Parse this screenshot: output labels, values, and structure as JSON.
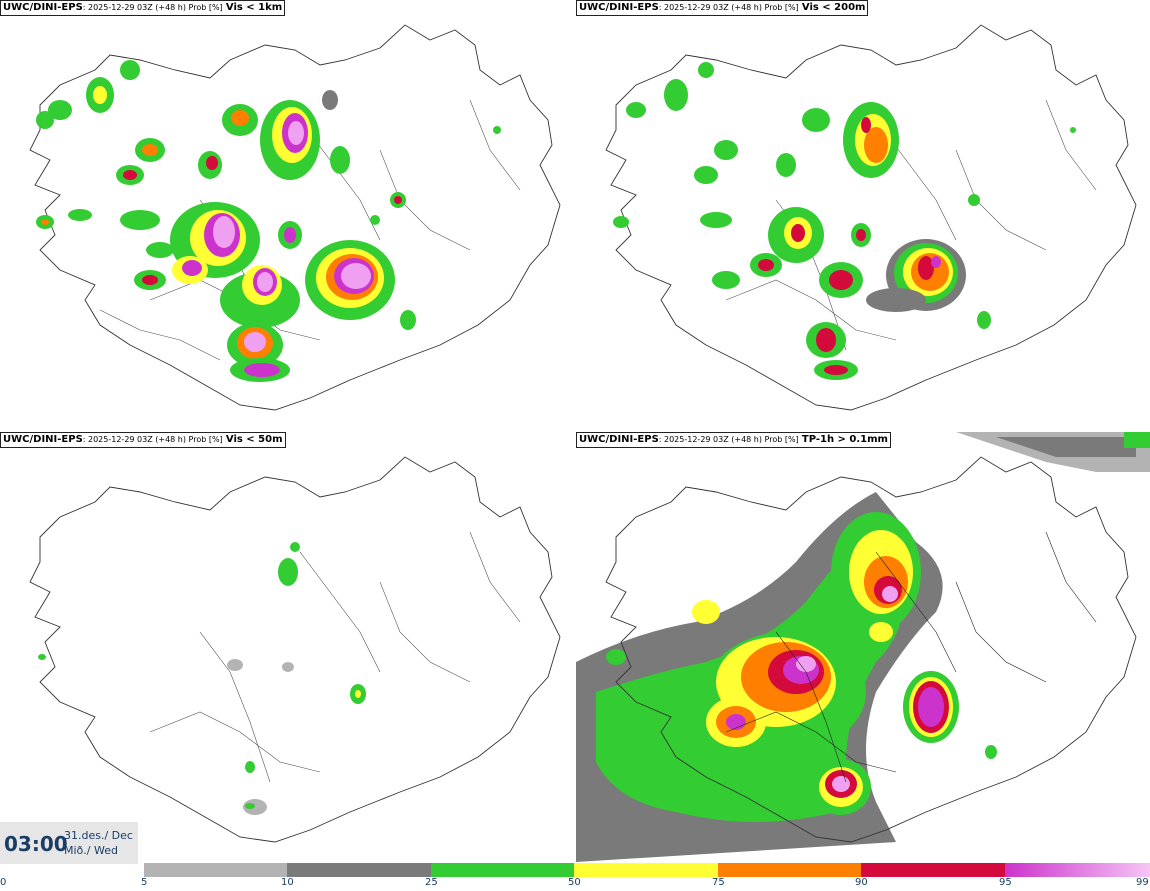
{
  "panels": [
    {
      "source": "UWC/DINI-EPS",
      "meta": ": 2025-12-29 03Z (+48 h) Prob [%]",
      "variable": "Vis < 1km"
    },
    {
      "source": "UWC/DINI-EPS",
      "meta": ": 2025-12-29 03Z (+48 h) Prob [%]",
      "variable": "Vis < 200m"
    },
    {
      "source": "UWC/DINI-EPS",
      "meta": ": 2025-12-29 03Z (+48 h) Prob [%]",
      "variable": "Vis < 50m"
    },
    {
      "source": "UWC/DINI-EPS",
      "meta": ": 2025-12-29 03Z (+48 h) Prob [%]",
      "variable": "TP-1h > 0.1mm"
    }
  ],
  "valid_time": {
    "time": "03:00",
    "date_line1": "31.des./ Dec",
    "date_line2": "Mið./ Wed"
  },
  "colorbar": {
    "ticks": [
      "0",
      "5",
      "10",
      "25",
      "50",
      "75",
      "90",
      "95",
      "99"
    ],
    "colors": [
      "#ffffff",
      "#b3b3b3",
      "#7a7a7a",
      "#33cc33",
      "#ffff33",
      "#ff7f00",
      "#d40a3c",
      "#cc33cc",
      "#f5b3f5"
    ]
  },
  "palette": {
    "light_grey": "#b3b3b3",
    "dark_grey": "#7a7a7a",
    "green": "#33cc33",
    "yellow": "#ffff33",
    "orange": "#ff7f00",
    "red": "#d40a3c",
    "magenta": "#cc33cc",
    "pink": "#f0a0f0"
  }
}
